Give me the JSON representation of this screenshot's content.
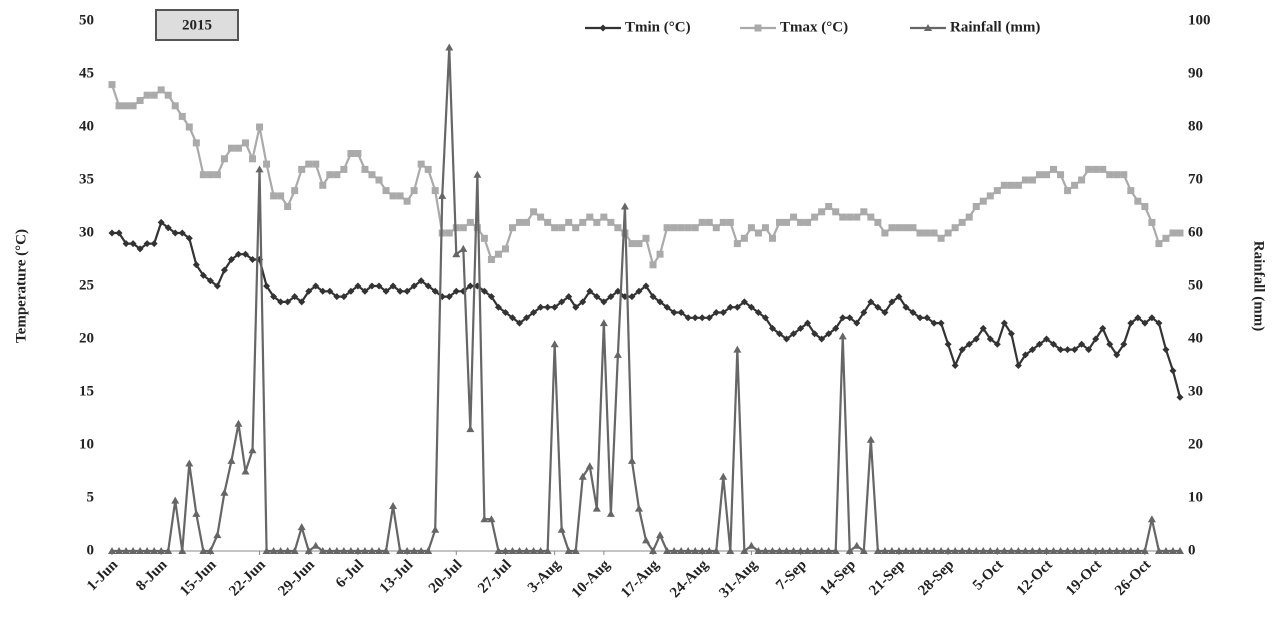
{
  "chart_data": {
    "type": "line",
    "annotation": "2015",
    "ylabel": "Temperature (°C)",
    "y2label": "Rainfall (mm)",
    "ylim": [
      0,
      50
    ],
    "yticks": [
      0,
      5,
      10,
      15,
      20,
      25,
      30,
      35,
      40,
      45,
      50
    ],
    "y2lim": [
      0,
      100
    ],
    "y2ticks": [
      0,
      10,
      20,
      30,
      40,
      50,
      60,
      70,
      80,
      90,
      100
    ],
    "legend": "top",
    "grid": false,
    "categories": [
      "1-Jun",
      null,
      null,
      null,
      null,
      null,
      null,
      "8-Jun",
      null,
      null,
      null,
      null,
      null,
      null,
      "15-Jun",
      null,
      null,
      null,
      null,
      null,
      null,
      "22-Jun",
      null,
      null,
      null,
      null,
      null,
      null,
      "29-Jun",
      null,
      null,
      null,
      null,
      null,
      null,
      "6-Jul",
      null,
      null,
      null,
      null,
      null,
      null,
      "13-Jul",
      null,
      null,
      null,
      null,
      null,
      null,
      "20-Jul",
      null,
      null,
      null,
      null,
      null,
      null,
      "27-Jul",
      null,
      null,
      null,
      null,
      null,
      null,
      "3-Aug",
      null,
      null,
      null,
      null,
      null,
      null,
      "10-Aug",
      null,
      null,
      null,
      null,
      null,
      null,
      "17-Aug",
      null,
      null,
      null,
      null,
      null,
      null,
      "24-Aug",
      null,
      null,
      null,
      null,
      null,
      null,
      "31-Aug",
      null,
      null,
      null,
      null,
      null,
      null,
      "7-Sep",
      null,
      null,
      null,
      null,
      null,
      null,
      "14-Sep",
      null,
      null,
      null,
      null,
      null,
      null,
      "21-Sep",
      null,
      null,
      null,
      null,
      null,
      null,
      "28-Sep",
      null,
      null,
      null,
      null,
      null,
      null,
      "5-Oct",
      null,
      null,
      null,
      null,
      null,
      null,
      "12-Oct",
      null,
      null,
      null,
      null,
      null,
      null,
      "19-Oct",
      null,
      null,
      null,
      null,
      null,
      null,
      "26-Oct",
      null,
      null,
      null,
      null,
      null
    ],
    "series": [
      {
        "name": "Tmin (°C)",
        "color": "#333333",
        "marker": "diamond",
        "values": [
          30,
          30,
          29,
          29,
          28.5,
          29,
          29,
          31,
          30.5,
          30,
          30,
          29.5,
          27,
          26,
          25.5,
          25,
          26.5,
          27.5,
          28,
          28,
          27.5,
          27.5,
          25,
          24,
          23.5,
          23.5,
          24,
          23.5,
          24.5,
          25,
          24.5,
          24.5,
          24,
          24,
          24.5,
          25,
          24.5,
          25,
          25,
          24.5,
          25,
          24.5,
          24.5,
          25,
          25.5,
          25,
          24.5,
          24,
          24,
          24.5,
          24.5,
          25,
          25,
          24.5,
          24,
          23,
          22.5,
          22,
          21.5,
          22,
          22.5,
          23,
          23,
          23,
          23.5,
          24,
          23,
          23.5,
          24.5,
          24,
          23.5,
          24,
          24.5,
          24,
          24,
          24.5,
          25,
          24,
          23.5,
          23,
          22.5,
          22.5,
          22,
          22,
          22,
          22,
          22.5,
          22.5,
          23,
          23,
          23.5,
          23,
          22.5,
          22,
          21,
          20.5,
          20,
          20.5,
          21,
          21.5,
          20.5,
          20,
          20.5,
          21,
          22,
          22,
          21.5,
          22.5,
          23.5,
          23,
          22.5,
          23.5,
          24,
          23,
          22.5,
          22,
          22,
          21.5,
          21.5,
          19.5,
          17.5,
          19,
          19.5,
          20,
          21,
          20,
          19.5,
          21.5,
          20.5,
          17.5,
          18.5,
          19,
          19.5,
          20,
          19.5,
          19,
          19,
          19,
          19.5,
          19,
          20,
          21,
          19.5,
          18.5,
          19.5,
          21.5,
          22,
          21.5,
          22,
          21.5,
          19,
          17,
          14.5
        ]
      },
      {
        "name": "Tmax (°C)",
        "color": "#aaaaaa",
        "marker": "square",
        "values": [
          44,
          42,
          42,
          42,
          42.5,
          43,
          43,
          43.5,
          43,
          42,
          41,
          40,
          38.5,
          35.5,
          35.5,
          35.5,
          37,
          38,
          38,
          38.5,
          37,
          40,
          36.5,
          33.5,
          33.5,
          32.5,
          34,
          36,
          36.5,
          36.5,
          34.5,
          35.5,
          35.5,
          36,
          37.5,
          37.5,
          36,
          35.5,
          35,
          34,
          33.5,
          33.5,
          33,
          34,
          36.5,
          36,
          34,
          30,
          30,
          30.5,
          30.5,
          31,
          30.5,
          29.5,
          27.5,
          28,
          28.5,
          30.5,
          31,
          31,
          32,
          31.5,
          31,
          30.5,
          30.5,
          31,
          30.5,
          31,
          31.5,
          31,
          31.5,
          31,
          30.5,
          30,
          29,
          29,
          29.5,
          27,
          28,
          30.5,
          30.5,
          30.5,
          30.5,
          30.5,
          31,
          31,
          30.5,
          31,
          31,
          29,
          29.5,
          30.5,
          30,
          30.5,
          29.5,
          31,
          31,
          31.5,
          31,
          31,
          31.5,
          32,
          32.5,
          32,
          31.5,
          31.5,
          31.5,
          32,
          31.5,
          31,
          30,
          30.5,
          30.5,
          30.5,
          30.5,
          30,
          30,
          30,
          29.5,
          30,
          30.5,
          31,
          31.5,
          32.5,
          33,
          33.5,
          34,
          34.5,
          34.5,
          34.5,
          35,
          35,
          35.5,
          35.5,
          36,
          35.5,
          34,
          34.5,
          35,
          36,
          36,
          36,
          35.5,
          35.5,
          35.5,
          34,
          33,
          32.5,
          31,
          29,
          29.5,
          30,
          30
        ]
      },
      {
        "name": "Rainfall (mm)",
        "color": "#666666",
        "marker": "triangle",
        "axis": "y2",
        "values": [
          0,
          0,
          0,
          0,
          0,
          0,
          0,
          0,
          0,
          9.5,
          0,
          16.5,
          7,
          0,
          0,
          3,
          11,
          17,
          24,
          15,
          19,
          72,
          0,
          0,
          0,
          0,
          0,
          4.5,
          0,
          1,
          0,
          0,
          0,
          0,
          0,
          0,
          0,
          0,
          0,
          0,
          8.5,
          0,
          0,
          0,
          0,
          0,
          4,
          67,
          95,
          56,
          57,
          23,
          71,
          6,
          6,
          0,
          0,
          0,
          0,
          0,
          0,
          0,
          0,
          39,
          4,
          0,
          0,
          14,
          16,
          8,
          43,
          7,
          37,
          65,
          17,
          8,
          2,
          0,
          3,
          0,
          0,
          0,
          0,
          0,
          0,
          0,
          0,
          14,
          0,
          38,
          0,
          1,
          0,
          0,
          0,
          0,
          0,
          0,
          0,
          0,
          0,
          0,
          0,
          0,
          40.5,
          0,
          1,
          0,
          21,
          0,
          0,
          0,
          0,
          0,
          0,
          0,
          0,
          0,
          0,
          0,
          0,
          0,
          0,
          0,
          0,
          0,
          0,
          0,
          0,
          0,
          0,
          0,
          0,
          0,
          0,
          0,
          0,
          0,
          0,
          0,
          0,
          0,
          0,
          0,
          0,
          0,
          0,
          0,
          6,
          0,
          0,
          0,
          0
        ]
      }
    ]
  }
}
